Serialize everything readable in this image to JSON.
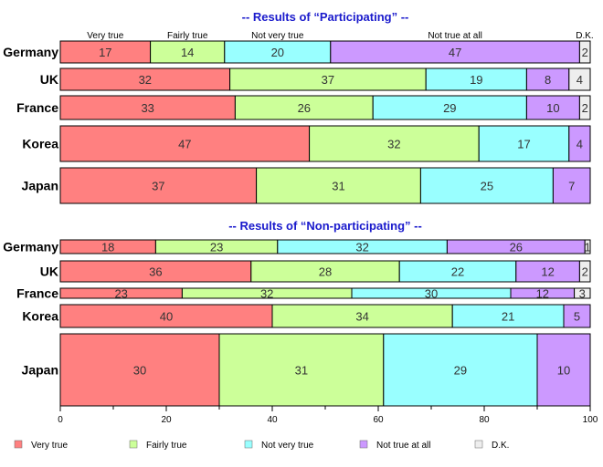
{
  "chart_data": {
    "type": "bar",
    "orientation": "horizontal",
    "stacked": true,
    "xlim": [
      0,
      100
    ],
    "x_ticks": [
      "0",
      "20",
      "40",
      "60",
      "80",
      "100"
    ],
    "legend_position": "bottom",
    "series_names": [
      "Very true",
      "Fairly true",
      "Not very true",
      "Not true at all",
      "D.K."
    ],
    "series_colors": [
      "#ff8080",
      "#ccff99",
      "#99ffff",
      "#cc99ff",
      "#eeeeee"
    ],
    "panels": [
      {
        "title": "-- Results of “Participating” --",
        "column_heads": [
          "Very true",
          "Fairly true",
          "Not very true",
          "Not true at all",
          "D.K."
        ],
        "rows": [
          {
            "country": "Germany",
            "values": [
              17,
              14,
              20,
              47,
              2
            ],
            "labels": [
              "17",
              "14",
              "20",
              "47",
              "2"
            ]
          },
          {
            "country": "UK",
            "values": [
              32,
              37,
              19,
              8,
              4
            ],
            "labels": [
              "32",
              "37",
              "19",
              "8",
              "4"
            ]
          },
          {
            "country": "France",
            "values": [
              33,
              26,
              29,
              10,
              2
            ],
            "labels": [
              "33",
              "26",
              "29",
              "10",
              "2"
            ]
          },
          {
            "country": "Korea",
            "values": [
              47,
              32,
              17,
              4,
              0
            ],
            "labels": [
              "47",
              "32",
              "17",
              "4",
              ""
            ]
          },
          {
            "country": "Japan",
            "values": [
              37,
              31,
              25,
              7,
              0
            ],
            "labels": [
              "37",
              "31",
              "25",
              "7",
              ""
            ]
          }
        ]
      },
      {
        "title": "-- Results of “Non-participating” --",
        "column_heads": [],
        "rows": [
          {
            "country": "Germany",
            "values": [
              18,
              23,
              32,
              26,
              1
            ],
            "labels": [
              "18",
              "23",
              "32",
              "26",
              "1"
            ]
          },
          {
            "country": "UK",
            "values": [
              36,
              28,
              22,
              12,
              2
            ],
            "labels": [
              "36",
              "28",
              "22",
              "12",
              "2"
            ]
          },
          {
            "country": "France",
            "values": [
              23,
              32,
              30,
              12,
              3
            ],
            "labels": [
              "23",
              "32",
              "30",
              "12",
              "3"
            ]
          },
          {
            "country": "Korea",
            "values": [
              40,
              34,
              21,
              5,
              0
            ],
            "labels": [
              "40",
              "34",
              "21",
              "5",
              ""
            ]
          },
          {
            "country": "Japan",
            "values": [
              30,
              31,
              29,
              10,
              0
            ],
            "labels": [
              "30",
              "31",
              "29",
              "10",
              ""
            ]
          }
        ]
      }
    ]
  }
}
